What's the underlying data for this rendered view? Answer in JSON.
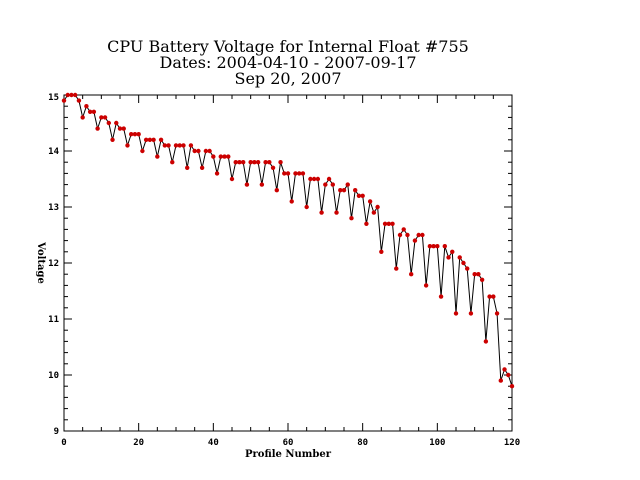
{
  "chart_data": {
    "type": "line",
    "title_lines": [
      "CPU Battery Voltage for Internal Float #755",
      "Dates:  2004-04-10 -  2007-09-17",
      "Sep 20, 2007"
    ],
    "xlabel": "Profile Number",
    "ylabel": "Voltage",
    "xlim": [
      0,
      120
    ],
    "ylim": [
      9,
      15
    ],
    "x_ticks": [
      "0",
      "20",
      "40",
      "60",
      "80",
      "100",
      "120"
    ],
    "y_ticks": [
      "9",
      "10",
      "11",
      "12",
      "13",
      "14",
      "15"
    ],
    "grid": false,
    "line_color": "#000000",
    "marker_color": "#cc0000",
    "x": [
      0,
      1,
      2,
      3,
      4,
      5,
      6,
      7,
      8,
      9,
      10,
      11,
      12,
      13,
      14,
      15,
      16,
      17,
      18,
      19,
      20,
      21,
      22,
      23,
      24,
      25,
      26,
      27,
      28,
      29,
      30,
      31,
      32,
      33,
      34,
      35,
      36,
      37,
      38,
      39,
      40,
      41,
      42,
      43,
      44,
      45,
      46,
      47,
      48,
      49,
      50,
      51,
      52,
      53,
      54,
      55,
      56,
      57,
      58,
      59,
      60,
      61,
      62,
      63,
      64,
      65,
      66,
      67,
      68,
      69,
      70,
      71,
      72,
      73,
      74,
      75,
      76,
      77,
      78,
      79,
      80,
      81,
      82,
      83,
      84,
      85,
      86,
      87,
      88,
      89,
      90,
      91,
      92,
      93,
      94,
      95,
      96,
      97,
      98,
      99,
      100,
      101,
      102,
      103,
      104,
      105,
      106,
      107,
      108,
      109,
      110,
      111,
      112,
      113,
      114,
      115,
      116,
      117,
      118,
      119,
      120
    ],
    "y": [
      14.9,
      15.0,
      15.05,
      15.0,
      14.9,
      14.6,
      14.8,
      14.7,
      14.7,
      14.4,
      14.6,
      14.6,
      14.5,
      14.2,
      14.5,
      14.4,
      14.4,
      14.1,
      14.3,
      14.3,
      14.3,
      14.0,
      14.2,
      14.2,
      14.2,
      13.9,
      14.2,
      14.1,
      14.1,
      13.8,
      14.1,
      14.1,
      14.1,
      13.7,
      14.1,
      14.0,
      14.0,
      13.7,
      14.0,
      14.0,
      13.9,
      13.6,
      13.9,
      13.9,
      13.9,
      13.5,
      13.8,
      13.8,
      13.8,
      13.4,
      13.8,
      13.8,
      13.8,
      13.4,
      13.8,
      13.8,
      13.7,
      13.3,
      13.8,
      13.6,
      13.6,
      13.1,
      13.6,
      13.6,
      13.6,
      13.0,
      13.5,
      13.5,
      13.5,
      12.9,
      13.4,
      13.5,
      13.4,
      12.9,
      13.3,
      13.3,
      13.4,
      12.8,
      13.3,
      13.2,
      13.2,
      12.7,
      13.1,
      12.9,
      13.0,
      12.2,
      12.7,
      12.7,
      12.7,
      11.9,
      12.5,
      12.6,
      12.5,
      11.8,
      12.4,
      12.5,
      12.5,
      11.6,
      12.3,
      12.3,
      12.3,
      11.4,
      12.3,
      12.1,
      12.2,
      11.1,
      12.1,
      12.0,
      11.9,
      11.1,
      11.8,
      11.8,
      11.7,
      10.6,
      11.4,
      11.4,
      11.1,
      9.9,
      10.1,
      10.0,
      9.8
    ]
  }
}
